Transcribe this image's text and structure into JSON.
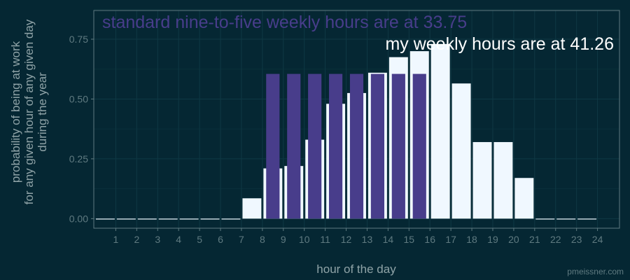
{
  "chart_data": {
    "type": "bar",
    "xlabel": "hour of the day",
    "ylabel_lines": [
      "probability of being at work",
      "for any given hour of any given day",
      "during the year"
    ],
    "categories": [
      "1",
      "2",
      "3",
      "4",
      "5",
      "6",
      "7",
      "8",
      "9",
      "10",
      "11",
      "12",
      "13",
      "14",
      "15",
      "16",
      "17",
      "18",
      "19",
      "20",
      "21",
      "22",
      "23",
      "24"
    ],
    "series": [
      {
        "key": "mine",
        "color": "#f0f8ff",
        "values": [
          0,
          0,
          0,
          0,
          0,
          0,
          0,
          0.085,
          0.21,
          0.22,
          0.33,
          0.48,
          0.525,
          0.61,
          0.675,
          0.7,
          0.73,
          0.565,
          0.32,
          0.32,
          0.17,
          0,
          0,
          0
        ]
      },
      {
        "key": "standard",
        "color": "#483d8b",
        "hours": [
          "9",
          "10",
          "11",
          "12",
          "13",
          "14",
          "15",
          "16"
        ],
        "value": 0.605
      }
    ],
    "ylim": [
      -0.04,
      0.87
    ],
    "yticks": [
      "0.00",
      "0.25",
      "0.50",
      "0.75"
    ],
    "ytick_values": [
      0,
      0.25,
      0.5,
      0.75
    ],
    "grid": true,
    "annotations": {
      "standard": "standard nine-to-five weekly hours are at 33.75",
      "mine": "my weekly hours are at 41.26"
    }
  },
  "watermark": "pmeissner.com",
  "colors": {
    "background": "#052733",
    "grid_major": "#0f3844",
    "grid_minor": "#0a303b",
    "panel_border": "#5f7a80"
  }
}
